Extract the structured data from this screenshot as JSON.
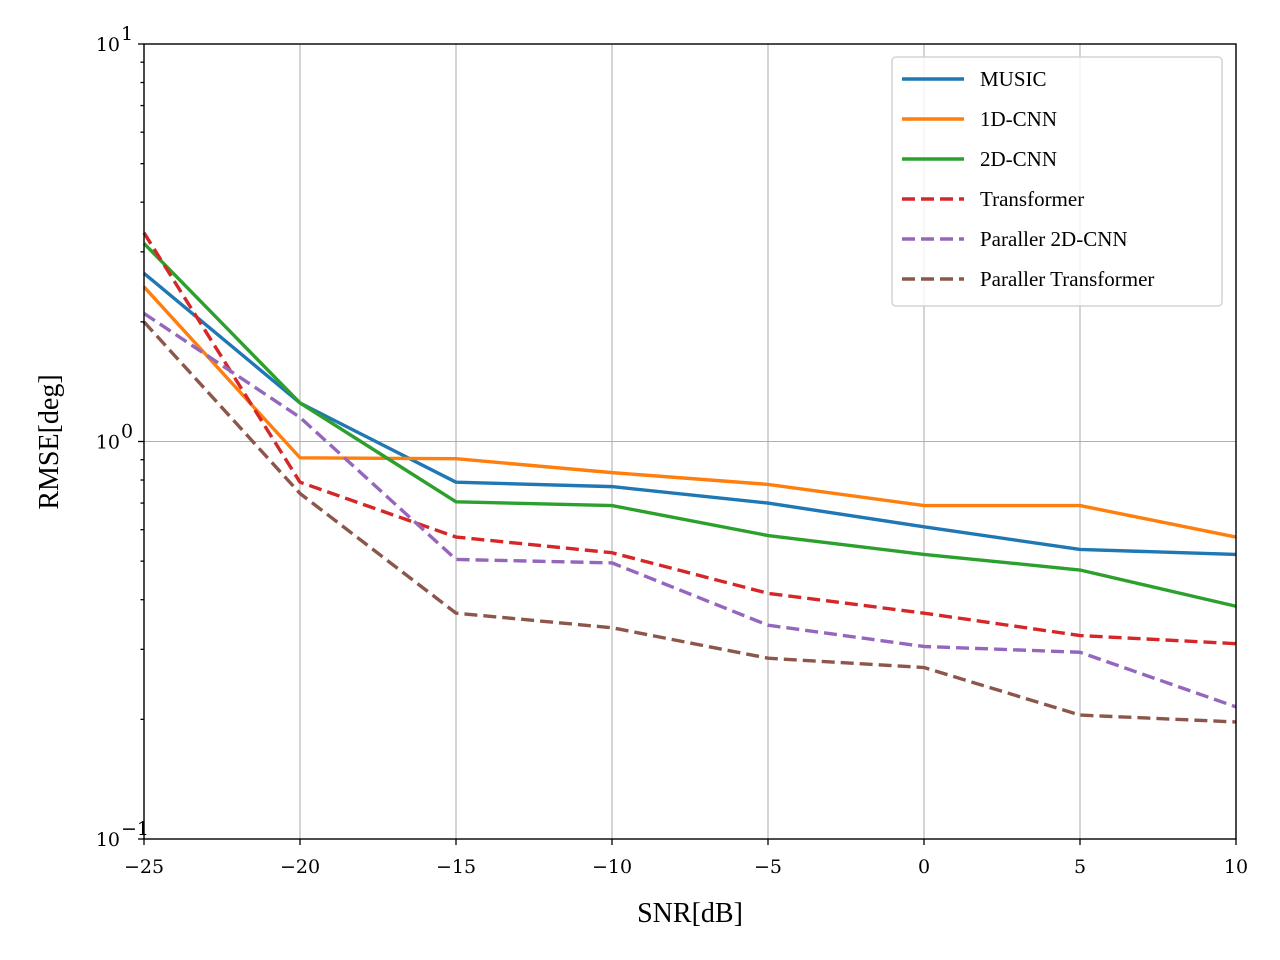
{
  "chart_data": {
    "type": "line",
    "title": "",
    "xlabel": "SNR[dB]",
    "ylabel": "RMSE[deg]",
    "xlim": [
      -25,
      10
    ],
    "ylim": [
      0.1,
      10
    ],
    "yscale": "log",
    "grid": true,
    "legend_position": "top-right",
    "x": [
      -25,
      -20,
      -15,
      -10,
      -5,
      0,
      5,
      10
    ],
    "x_tick_labels": [
      "−25",
      "−20",
      "−15",
      "−10",
      "−5",
      "0",
      "5",
      "10"
    ],
    "y_tick_labels": [
      {
        "value": 10,
        "base": "10",
        "exp": "1"
      },
      {
        "value": 1,
        "base": "10",
        "exp": "0"
      },
      {
        "value": 0.1,
        "base": "10",
        "exp": "−1"
      }
    ],
    "series": [
      {
        "name": "MUSIC",
        "color": "#1f77b4",
        "dash": "solid",
        "values": [
          2.65,
          1.25,
          0.79,
          0.77,
          0.7,
          0.61,
          0.535,
          0.52
        ]
      },
      {
        "name": "1D-CNN",
        "color": "#ff7f0e",
        "dash": "solid",
        "values": [
          2.45,
          0.91,
          0.905,
          0.835,
          0.78,
          0.69,
          0.69,
          0.575
        ]
      },
      {
        "name": "2D-CNN",
        "color": "#2ca02c",
        "dash": "solid",
        "values": [
          3.15,
          1.25,
          0.705,
          0.69,
          0.58,
          0.52,
          0.475,
          0.385
        ]
      },
      {
        "name": "Transformer",
        "color": "#d62728",
        "dash": "dashed",
        "values": [
          3.35,
          0.79,
          0.575,
          0.525,
          0.415,
          0.37,
          0.325,
          0.31
        ]
      },
      {
        "name": "Paraller 2D-CNN",
        "color": "#9467bd",
        "dash": "dashed",
        "values": [
          2.1,
          1.15,
          0.505,
          0.495,
          0.345,
          0.305,
          0.295,
          0.215
        ]
      },
      {
        "name": "Paraller Transformer",
        "color": "#8c564b",
        "dash": "dashed",
        "values": [
          2.0,
          0.74,
          0.37,
          0.34,
          0.285,
          0.27,
          0.205,
          0.197
        ]
      }
    ]
  }
}
